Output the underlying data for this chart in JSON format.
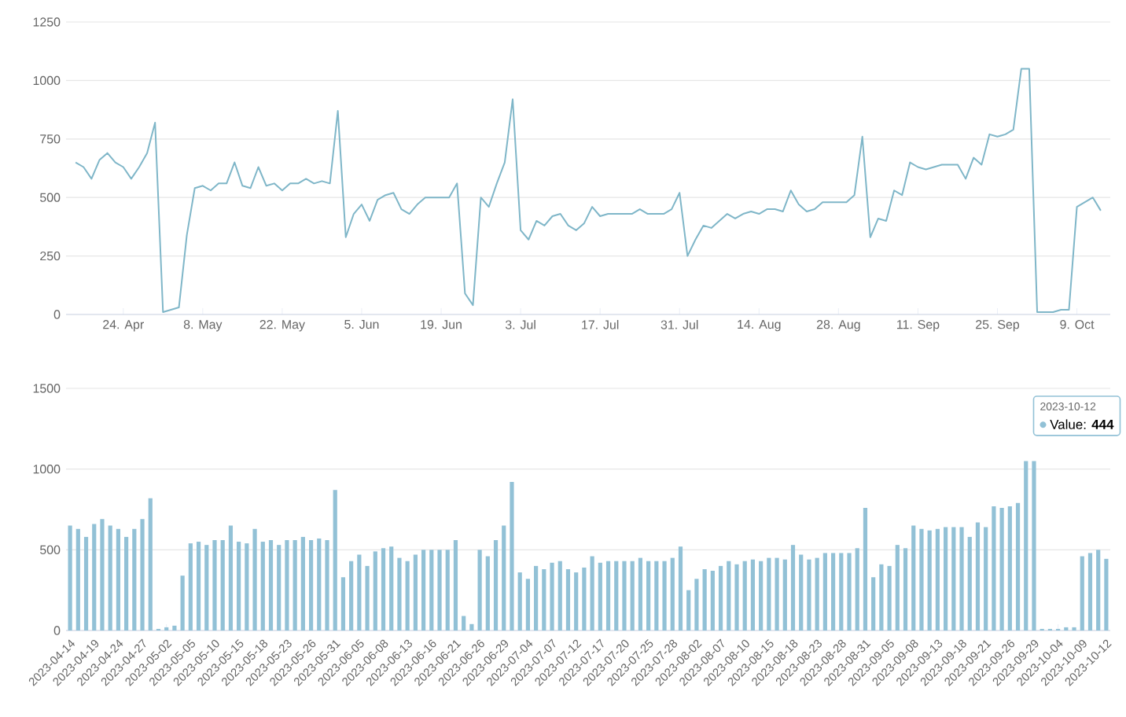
{
  "chart_data": [
    {
      "type": "line",
      "color": "#7fb6c8",
      "grid": "y",
      "ylim": [
        0,
        1250
      ],
      "yticks": [
        0,
        250,
        500,
        750,
        1000,
        1250
      ],
      "categories": [
        null,
        null,
        null,
        null,
        null,
        null,
        "24. Apr",
        null,
        null,
        null,
        null,
        null,
        null,
        null,
        null,
        null,
        "8. May",
        null,
        null,
        null,
        null,
        null,
        null,
        null,
        null,
        null,
        "22. May",
        null,
        null,
        null,
        null,
        null,
        null,
        null,
        null,
        null,
        "5. Jun",
        null,
        null,
        null,
        null,
        null,
        null,
        null,
        null,
        null,
        "19. Jun",
        null,
        null,
        null,
        null,
        null,
        null,
        null,
        null,
        null,
        "3. Jul",
        null,
        null,
        null,
        null,
        null,
        null,
        null,
        null,
        null,
        "17. Jul",
        null,
        null,
        null,
        null,
        null,
        null,
        null,
        null,
        null,
        "31. Jul",
        null,
        null,
        null,
        null,
        null,
        null,
        null,
        null,
        null,
        "14. Aug",
        null,
        null,
        null,
        null,
        null,
        null,
        null,
        null,
        null,
        "28. Aug",
        null,
        null,
        null,
        null,
        null,
        null,
        null,
        null,
        null,
        "11. Sep",
        null,
        null,
        null,
        null,
        null,
        null,
        null,
        null,
        null,
        "25. Sep",
        null,
        null,
        null,
        null,
        null,
        null,
        null,
        null,
        null,
        "9. Oct",
        null,
        null,
        null
      ],
      "values": [
        650,
        630,
        580,
        660,
        690,
        650,
        630,
        580,
        630,
        690,
        820,
        10,
        20,
        30,
        340,
        540,
        550,
        530,
        560,
        560,
        650,
        550,
        540,
        630,
        550,
        560,
        530,
        560,
        560,
        580,
        560,
        570,
        560,
        870,
        330,
        430,
        470,
        400,
        490,
        510,
        520,
        450,
        430,
        470,
        500,
        500,
        500,
        500,
        560,
        90,
        40,
        500,
        460,
        560,
        650,
        920,
        360,
        320,
        400,
        380,
        420,
        430,
        380,
        360,
        390,
        460,
        420,
        430,
        430,
        430,
        430,
        450,
        430,
        430,
        430,
        450,
        520,
        250,
        320,
        380,
        370,
        400,
        430,
        410,
        430,
        440,
        430,
        450,
        450,
        440,
        530,
        470,
        440,
        450,
        480,
        480,
        480,
        480,
        510,
        760,
        330,
        410,
        400,
        530,
        510,
        650,
        630,
        620,
        630,
        640,
        640,
        640,
        580,
        670,
        640,
        770,
        760,
        770,
        790,
        1050,
        1050,
        10,
        10,
        10,
        20,
        20,
        460,
        480,
        500,
        444
      ]
    },
    {
      "type": "bar",
      "color": "#92c1d6",
      "grid": "y",
      "ylim": [
        0,
        1500
      ],
      "yticks": [
        0,
        500,
        1000,
        1500
      ],
      "categories": [
        "2023-04-14",
        null,
        null,
        "2023-04-19",
        null,
        null,
        "2023-04-24",
        null,
        null,
        "2023-04-27",
        null,
        null,
        "2023-05-02",
        null,
        null,
        "2023-05-05",
        null,
        null,
        "2023-05-10",
        null,
        null,
        "2023-05-15",
        null,
        null,
        "2023-05-18",
        null,
        null,
        "2023-05-23",
        null,
        null,
        "2023-05-26",
        null,
        null,
        "2023-05-31",
        null,
        null,
        "2023-06-05",
        null,
        null,
        "2023-06-08",
        null,
        null,
        "2023-06-13",
        null,
        null,
        "2023-06-16",
        null,
        null,
        "2023-06-21",
        null,
        null,
        "2023-06-26",
        null,
        null,
        "2023-06-29",
        null,
        null,
        "2023-07-04",
        null,
        null,
        "2023-07-07",
        null,
        null,
        "2023-07-12",
        null,
        null,
        "2023-07-17",
        null,
        null,
        "2023-07-20",
        null,
        null,
        "2023-07-25",
        null,
        null,
        "2023-07-28",
        null,
        null,
        "2023-08-02",
        null,
        null,
        "2023-08-07",
        null,
        null,
        "2023-08-10",
        null,
        null,
        "2023-08-15",
        null,
        null,
        "2023-08-18",
        null,
        null,
        "2023-08-23",
        null,
        null,
        "2023-08-28",
        null,
        null,
        "2023-08-31",
        null,
        null,
        "2023-09-05",
        null,
        null,
        "2023-09-08",
        null,
        null,
        "2023-09-13",
        null,
        null,
        "2023-09-18",
        null,
        null,
        "2023-09-21",
        null,
        null,
        "2023-09-26",
        null,
        null,
        "2023-09-29",
        null,
        null,
        "2023-10-04",
        null,
        null,
        "2023-10-09",
        null,
        null,
        "2023-10-12"
      ],
      "values": [
        650,
        630,
        580,
        660,
        690,
        650,
        630,
        580,
        630,
        690,
        820,
        10,
        20,
        30,
        340,
        540,
        550,
        530,
        560,
        560,
        650,
        550,
        540,
        630,
        550,
        560,
        530,
        560,
        560,
        580,
        560,
        570,
        560,
        870,
        330,
        430,
        470,
        400,
        490,
        510,
        520,
        450,
        430,
        470,
        500,
        500,
        500,
        500,
        560,
        90,
        40,
        500,
        460,
        560,
        650,
        920,
        360,
        320,
        400,
        380,
        420,
        430,
        380,
        360,
        390,
        460,
        420,
        430,
        430,
        430,
        430,
        450,
        430,
        430,
        430,
        450,
        520,
        250,
        320,
        380,
        370,
        400,
        430,
        410,
        430,
        440,
        430,
        450,
        450,
        440,
        530,
        470,
        440,
        450,
        480,
        480,
        480,
        480,
        510,
        760,
        330,
        410,
        400,
        530,
        510,
        650,
        630,
        620,
        630,
        640,
        640,
        640,
        580,
        670,
        640,
        770,
        760,
        770,
        790,
        1050,
        1050,
        10,
        10,
        10,
        20,
        20,
        460,
        480,
        500,
        444
      ],
      "annotations": [
        "2023-10-12",
        "Value: **444**"
      ]
    }
  ]
}
